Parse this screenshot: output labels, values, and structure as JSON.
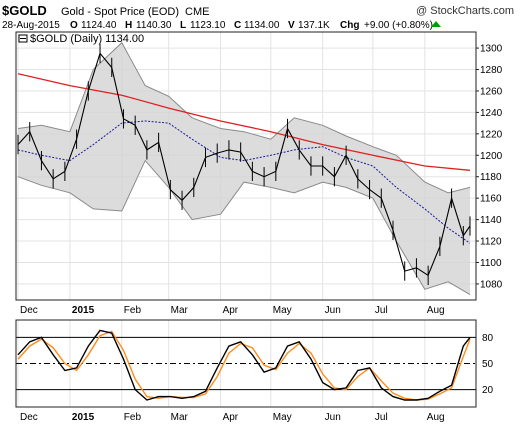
{
  "header": {
    "symbol": "$GOLD",
    "description": "Gold - Spot Price (EOD)",
    "exchange": "CME",
    "watermark": "@ StockCharts.com",
    "date": "28-Aug-2015",
    "open_label": "O",
    "open": "1124.40",
    "high_label": "H",
    "high": "1140.30",
    "low_label": "L",
    "low": "1123.10",
    "close_label": "C",
    "close": "1134.00",
    "volume_label": "V",
    "volume": "137.1K",
    "change_label": "Chg",
    "change": "+9.00 (+0.80%)"
  },
  "legend": {
    "main": "$GOLD (Daily) 1134.00"
  },
  "colors": {
    "price": "#000000",
    "ma_long": "#e02020",
    "ma_mid": "#1a1a9a",
    "band_fill": "#d3d3d3",
    "band_edge": "#8a8a8a",
    "grid": "#e3e3e3",
    "stoch_k": "#000000",
    "stoch_d": "#ff8c1a",
    "change_up": "#007a00"
  },
  "chart_data": [
    {
      "type": "line",
      "subtype": "ohlc",
      "ylim": [
        1065,
        1315
      ],
      "y_ticks": [
        1080,
        1100,
        1120,
        1140,
        1160,
        1180,
        1200,
        1220,
        1240,
        1260,
        1280,
        1300
      ],
      "x_month_labels": [
        "Dec",
        "2015",
        "Feb",
        "Mar",
        "Apr",
        "May",
        "Jun",
        "Jul",
        "Aug"
      ],
      "x_range": [
        "2014-12-01",
        "2015-08-28"
      ],
      "month_ticks": [
        "2014-12-01",
        "2015-01-01",
        "2015-02-01",
        "2015-03-01",
        "2015-04-01",
        "2015-05-01",
        "2015-06-01",
        "2015-07-01",
        "2015-08-01"
      ],
      "grid": true,
      "series": [
        {
          "role": "price_close",
          "x": [
            "2014-12-01",
            "2014-12-08",
            "2014-12-15",
            "2014-12-22",
            "2014-12-29",
            "2015-01-05",
            "2015-01-12",
            "2015-01-19",
            "2015-01-26",
            "2015-02-02",
            "2015-02-09",
            "2015-02-16",
            "2015-02-23",
            "2015-03-02",
            "2015-03-09",
            "2015-03-16",
            "2015-03-23",
            "2015-03-30",
            "2015-04-06",
            "2015-04-13",
            "2015-04-20",
            "2015-04-27",
            "2015-05-04",
            "2015-05-11",
            "2015-05-18",
            "2015-05-25",
            "2015-06-01",
            "2015-06-08",
            "2015-06-15",
            "2015-06-22",
            "2015-06-29",
            "2015-07-06",
            "2015-07-13",
            "2015-07-20",
            "2015-07-27",
            "2015-08-03",
            "2015-08-10",
            "2015-08-17",
            "2015-08-24",
            "2015-08-28"
          ],
          "values": [
            1210,
            1222,
            1195,
            1178,
            1185,
            1215,
            1260,
            1295,
            1282,
            1234,
            1228,
            1205,
            1212,
            1168,
            1158,
            1170,
            1198,
            1202,
            1205,
            1203,
            1185,
            1180,
            1185,
            1225,
            1205,
            1190,
            1190,
            1180,
            1200,
            1178,
            1168,
            1160,
            1130,
            1092,
            1095,
            1088,
            1115,
            1160,
            1125,
            1134
          ]
        },
        {
          "role": "moving_average_long",
          "x": [
            "2014-12-01",
            "2015-01-01",
            "2015-02-01",
            "2015-03-01",
            "2015-04-01",
            "2015-05-01",
            "2015-06-01",
            "2015-07-01",
            "2015-08-01",
            "2015-08-28"
          ],
          "values": [
            1276,
            1265,
            1256,
            1244,
            1232,
            1222,
            1210,
            1200,
            1190,
            1186
          ]
        },
        {
          "role": "moving_average_mid",
          "x": [
            "2014-12-01",
            "2014-12-15",
            "2015-01-01",
            "2015-01-15",
            "2015-02-01",
            "2015-02-15",
            "2015-03-01",
            "2015-03-15",
            "2015-04-01",
            "2015-04-15",
            "2015-05-01",
            "2015-05-15",
            "2015-06-01",
            "2015-06-15",
            "2015-07-01",
            "2015-07-15",
            "2015-08-01",
            "2015-08-15",
            "2015-08-28"
          ],
          "values": [
            1205,
            1200,
            1195,
            1210,
            1230,
            1232,
            1230,
            1215,
            1198,
            1195,
            1200,
            1205,
            1208,
            1198,
            1190,
            1170,
            1150,
            1132,
            1118
          ]
        },
        {
          "role": "band_upper",
          "x": [
            "2014-12-01",
            "2014-12-15",
            "2015-01-01",
            "2015-01-15",
            "2015-02-01",
            "2015-02-15",
            "2015-03-01",
            "2015-03-15",
            "2015-04-01",
            "2015-04-15",
            "2015-05-01",
            "2015-05-15",
            "2015-06-01",
            "2015-06-15",
            "2015-07-01",
            "2015-07-15",
            "2015-08-01",
            "2015-08-15",
            "2015-08-28"
          ],
          "values": [
            1225,
            1228,
            1222,
            1280,
            1305,
            1265,
            1255,
            1235,
            1225,
            1222,
            1215,
            1235,
            1228,
            1218,
            1208,
            1200,
            1175,
            1165,
            1170
          ]
        },
        {
          "role": "band_lower",
          "x": [
            "2014-12-01",
            "2014-12-15",
            "2015-01-01",
            "2015-01-15",
            "2015-02-01",
            "2015-02-15",
            "2015-03-01",
            "2015-03-15",
            "2015-04-01",
            "2015-04-15",
            "2015-05-01",
            "2015-05-15",
            "2015-06-01",
            "2015-06-15",
            "2015-07-01",
            "2015-07-15",
            "2015-08-01",
            "2015-08-15",
            "2015-08-28"
          ],
          "values": [
            1180,
            1172,
            1165,
            1150,
            1148,
            1195,
            1170,
            1140,
            1145,
            1175,
            1170,
            1165,
            1175,
            1170,
            1160,
            1120,
            1075,
            1082,
            1070
          ]
        }
      ]
    },
    {
      "type": "line",
      "subtype": "stochastic",
      "ylim": [
        0,
        100
      ],
      "y_ticks": [
        20,
        50,
        80
      ],
      "reference_lines": [
        80,
        50,
        20
      ],
      "x_month_labels": [
        "Dec",
        "2015",
        "Feb",
        "Mar",
        "Apr",
        "May",
        "Jun",
        "Jul",
        "Aug"
      ],
      "series": [
        {
          "role": "percent_k",
          "x": [
            "2014-12-01",
            "2014-12-08",
            "2014-12-15",
            "2014-12-22",
            "2014-12-29",
            "2015-01-05",
            "2015-01-12",
            "2015-01-19",
            "2015-01-26",
            "2015-02-02",
            "2015-02-09",
            "2015-02-16",
            "2015-02-23",
            "2015-03-02",
            "2015-03-09",
            "2015-03-16",
            "2015-03-23",
            "2015-03-30",
            "2015-04-06",
            "2015-04-13",
            "2015-04-20",
            "2015-04-27",
            "2015-05-04",
            "2015-05-11",
            "2015-05-18",
            "2015-05-25",
            "2015-06-01",
            "2015-06-08",
            "2015-06-15",
            "2015-06-22",
            "2015-06-29",
            "2015-07-06",
            "2015-07-13",
            "2015-07-20",
            "2015-07-27",
            "2015-08-03",
            "2015-08-10",
            "2015-08-17",
            "2015-08-24",
            "2015-08-28"
          ],
          "values": [
            60,
            75,
            80,
            60,
            42,
            45,
            70,
            88,
            85,
            55,
            20,
            8,
            12,
            12,
            10,
            12,
            18,
            45,
            70,
            75,
            60,
            40,
            45,
            70,
            75,
            55,
            28,
            20,
            22,
            42,
            45,
            22,
            12,
            8,
            8,
            10,
            18,
            25,
            70,
            80
          ]
        },
        {
          "role": "percent_d",
          "x": [
            "2014-12-01",
            "2014-12-08",
            "2014-12-15",
            "2014-12-22",
            "2014-12-29",
            "2015-01-05",
            "2015-01-12",
            "2015-01-19",
            "2015-01-26",
            "2015-02-02",
            "2015-02-09",
            "2015-02-16",
            "2015-02-23",
            "2015-03-02",
            "2015-03-09",
            "2015-03-16",
            "2015-03-23",
            "2015-03-30",
            "2015-04-06",
            "2015-04-13",
            "2015-04-20",
            "2015-04-27",
            "2015-05-04",
            "2015-05-11",
            "2015-05-18",
            "2015-05-25",
            "2015-06-01",
            "2015-06-08",
            "2015-06-15",
            "2015-06-22",
            "2015-06-29",
            "2015-07-06",
            "2015-07-13",
            "2015-07-20",
            "2015-07-27",
            "2015-08-03",
            "2015-08-10",
            "2015-08-17",
            "2015-08-24",
            "2015-08-28"
          ],
          "values": [
            55,
            70,
            78,
            68,
            50,
            42,
            60,
            82,
            87,
            65,
            32,
            12,
            10,
            12,
            11,
            11,
            15,
            35,
            62,
            73,
            68,
            48,
            43,
            62,
            73,
            62,
            38,
            22,
            20,
            35,
            45,
            30,
            16,
            10,
            8,
            9,
            15,
            22,
            58,
            78
          ]
        }
      ]
    }
  ]
}
